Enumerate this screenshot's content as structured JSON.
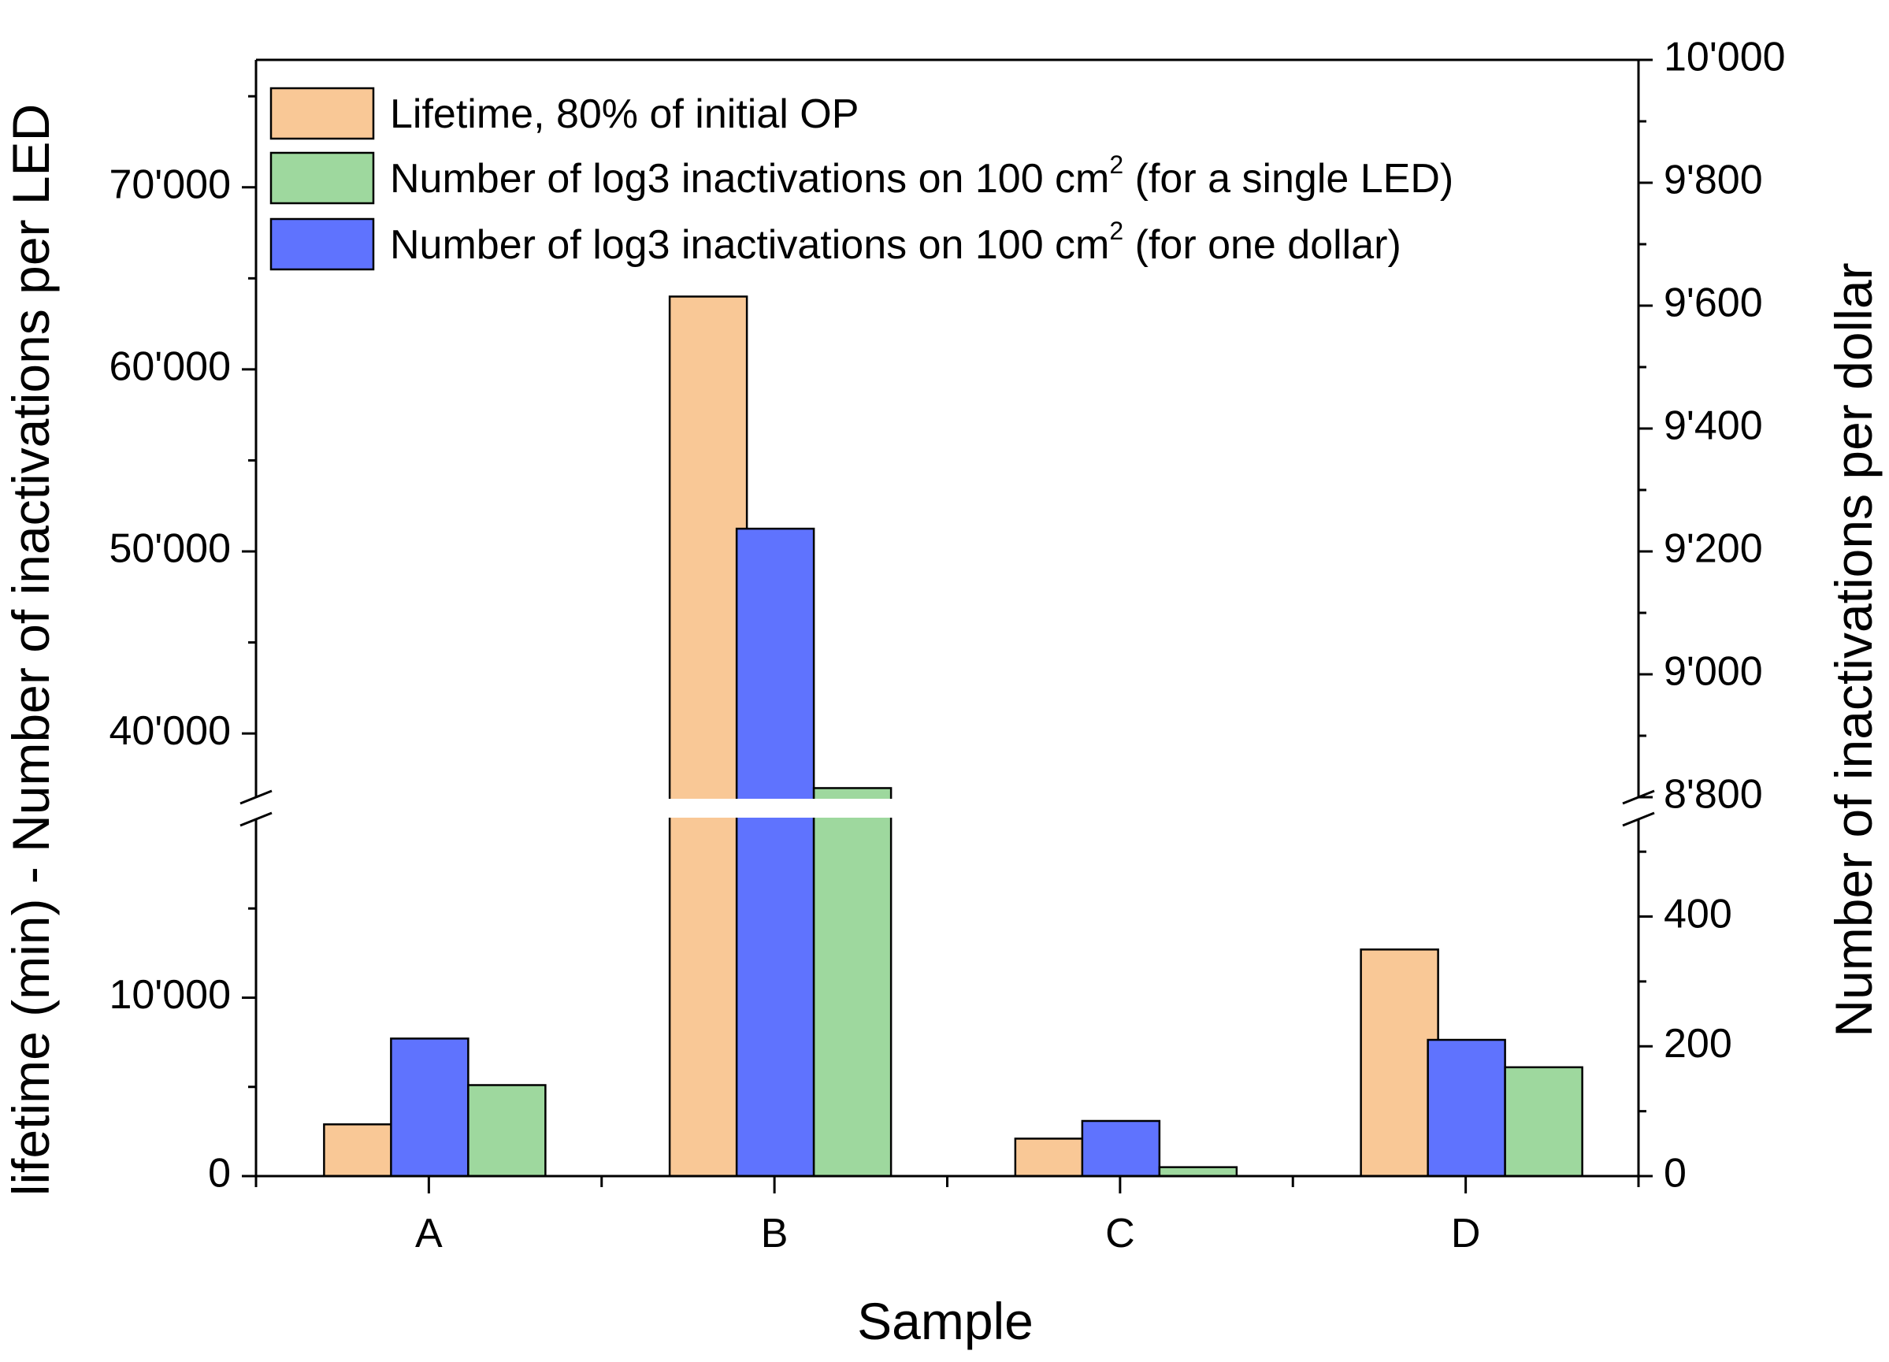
{
  "chart_data": {
    "type": "bar",
    "categories": [
      "A",
      "B",
      "C",
      "D"
    ],
    "xlabel": "Sample",
    "ylabel_left": "lifetime (min) - Number of inactivations per LED",
    "ylabel_right": "Number of inactivations per dollar",
    "legend": {
      "placement": "top-left",
      "entries": [
        {
          "text": "Lifetime, 80% of initial OP",
          "sup": "",
          "tail": ""
        },
        {
          "text": "Number of log3 inactivations on 100 cm",
          "sup": "2",
          "tail": "  (for a single LED)"
        },
        {
          "text": "Number of log3 inactivations on 100 cm",
          "sup": "2",
          "tail": " (for one dollar)"
        }
      ]
    },
    "left_axis": {
      "lower_range": [
        0,
        20000
      ],
      "upper_range": [
        36500,
        77000
      ],
      "break_at": 36500,
      "lower_ticks": [
        {
          "value": 0,
          "label": "0"
        },
        {
          "value": 10000,
          "label": "10'000"
        }
      ],
      "upper_ticks": [
        {
          "value": 40000,
          "label": "40'000"
        },
        {
          "value": 50000,
          "label": "50'000"
        },
        {
          "value": 60000,
          "label": "60'000"
        },
        {
          "value": 70000,
          "label": "70'000"
        }
      ]
    },
    "right_axis": {
      "lower_range": [
        0,
        550
      ],
      "upper_range": [
        8800,
        10000
      ],
      "break_at": 8800,
      "lower_ticks": [
        {
          "value": 0,
          "label": "0"
        },
        {
          "value": 200,
          "label": "200"
        },
        {
          "value": 400,
          "label": "400"
        }
      ],
      "upper_ticks": [
        {
          "value": 8800,
          "label": "8'800"
        },
        {
          "value": 9000,
          "label": "9'000"
        },
        {
          "value": 9200,
          "label": "9'200"
        },
        {
          "value": 9400,
          "label": "9'400"
        },
        {
          "value": 9600,
          "label": "9'600"
        },
        {
          "value": 9800,
          "label": "9'800"
        },
        {
          "value": 10000,
          "label": "10'000"
        }
      ]
    },
    "series": [
      {
        "name": "Lifetime, 80% of initial OP",
        "axis": "left",
        "color": "#f9c896",
        "values": [
          2900,
          64000,
          2100,
          12700
        ]
      },
      {
        "name": "Number of log3 inactivations on 100 cm2 (for one dollar)",
        "axis": "right",
        "color": "#5f73fe",
        "values": [
          212,
          9237,
          85,
          210
        ]
      },
      {
        "name": "Number of log3 inactivations on 100 cm2 (for a single LED)",
        "axis": "left",
        "color": "#9ed89e",
        "values": [
          5100,
          37000,
          500,
          6100
        ]
      }
    ],
    "grid": false
  }
}
